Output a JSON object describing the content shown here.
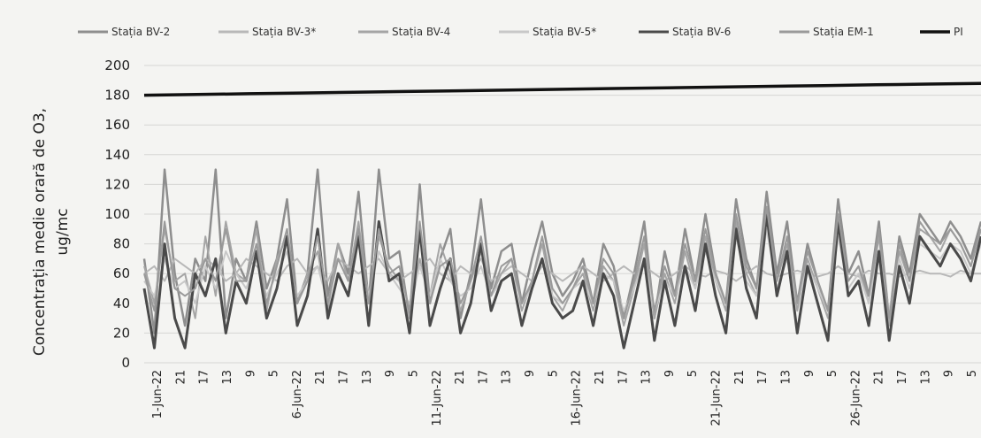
{
  "chart_data": {
    "type": "line",
    "ylabel_line1": "Concentrația medie orară de O3,",
    "ylabel_line2": "ug/mc",
    "ylim": [
      0,
      200
    ],
    "yticks": [
      0,
      20,
      40,
      60,
      80,
      100,
      120,
      140,
      160,
      180,
      200
    ],
    "grid": true,
    "legend_position": "top",
    "x_ticks": [
      "1-Jun-22",
      "21",
      "17",
      "13",
      "9",
      "5",
      "6-Jun-22",
      "21",
      "17",
      "13",
      "9",
      "5",
      "11-Jun-22",
      "21",
      "17",
      "13",
      "9",
      "5",
      "16-Jun-22",
      "21",
      "17",
      "13",
      "9",
      "5",
      "21-Jun-22",
      "21",
      "17",
      "13",
      "9",
      "5",
      "26-Jun-22",
      "21",
      "17",
      "13",
      "9",
      "5"
    ],
    "series": [
      {
        "name": "Stația BV-2",
        "color": "#8e8e8e",
        "width": 2.5,
        "values": [
          70,
          20,
          130,
          60,
          25,
          70,
          55,
          130,
          30,
          70,
          55,
          95,
          50,
          70,
          110,
          40,
          60,
          130,
          45,
          80,
          60,
          115,
          40,
          130,
          70,
          75,
          30,
          120,
          40,
          70,
          90,
          30,
          60,
          110,
          50,
          75,
          80,
          40,
          70,
          95,
          60,
          45,
          55,
          70,
          40,
          80,
          65,
          30,
          60,
          95,
          30,
          75,
          45,
          90,
          55,
          100,
          60,
          40,
          110,
          70,
          50,
          115,
          60,
          95,
          40,
          80,
          55,
          35,
          110,
          60,
          75,
          45,
          95,
          30,
          85,
          60,
          100,
          90,
          80,
          95,
          85,
          70,
          95
        ]
      },
      {
        "name": "Stația BV-3*",
        "color": "#b8b8b8",
        "width": 2,
        "values": [
          60,
          65,
          55,
          70,
          65,
          60,
          70,
          65,
          55,
          60,
          70,
          65,
          60,
          55,
          65,
          70,
          60,
          65,
          55,
          70,
          65,
          60,
          65,
          70,
          60,
          55,
          60,
          65,
          70,
          60,
          55,
          65,
          60,
          70,
          55,
          60,
          65,
          60,
          55,
          65,
          60,
          55,
          60,
          65,
          60,
          55,
          60,
          65,
          60,
          65,
          60,
          55,
          60,
          65,
          60,
          58,
          62,
          60,
          55,
          60,
          65,
          60,
          58,
          60,
          62,
          60,
          58,
          60,
          65,
          60,
          58,
          62,
          60,
          60,
          58,
          60,
          62,
          60,
          60,
          58,
          62,
          60,
          60
        ]
      },
      {
        "name": "Stația BV-4",
        "color": "#a5a5a5",
        "width": 2,
        "values": [
          65,
          40,
          90,
          55,
          60,
          30,
          85,
          45,
          95,
          60,
          55,
          90,
          35,
          70,
          85,
          40,
          60,
          75,
          35,
          80,
          55,
          95,
          40,
          85,
          65,
          55,
          30,
          70,
          45,
          80,
          60,
          35,
          55,
          75,
          45,
          60,
          70,
          35,
          55,
          80,
          45,
          35,
          50,
          60,
          35,
          65,
          55,
          25,
          50,
          80,
          30,
          60,
          40,
          75,
          50,
          85,
          55,
          35,
          95,
          60,
          45,
          100,
          55,
          80,
          35,
          70,
          50,
          30,
          95,
          55,
          65,
          40,
          85,
          25,
          75,
          55,
          90,
          85,
          75,
          90,
          80,
          65,
          90
        ]
      },
      {
        "name": "Stația BV-5*",
        "color": "#c8c8c8",
        "width": 2,
        "values": [
          55,
          45,
          70,
          50,
          55,
          40,
          65,
          50,
          75,
          60,
          50,
          70,
          45,
          60,
          75,
          45,
          55,
          65,
          40,
          70,
          55,
          80,
          45,
          75,
          60,
          50,
          40,
          65,
          45,
          70,
          55,
          45,
          50,
          65,
          45,
          55,
          60,
          40,
          50,
          70,
          45,
          40,
          50,
          55,
          40,
          60,
          55,
          35,
          50,
          70,
          35,
          55,
          45,
          65,
          50,
          75,
          55,
          40,
          85,
          55,
          45,
          90,
          50,
          70,
          40,
          65,
          50,
          35,
          85,
          50,
          60,
          40,
          75,
          35,
          70,
          50,
          80,
          75,
          70,
          80,
          75,
          60,
          80
        ]
      },
      {
        "name": "Stația BV-6",
        "color": "#4a4a4a",
        "width": 3,
        "values": [
          50,
          10,
          80,
          30,
          10,
          60,
          45,
          70,
          20,
          55,
          40,
          75,
          30,
          50,
          85,
          25,
          45,
          90,
          30,
          60,
          45,
          85,
          25,
          95,
          55,
          60,
          20,
          90,
          25,
          50,
          70,
          20,
          40,
          80,
          35,
          55,
          60,
          25,
          50,
          70,
          40,
          30,
          35,
          55,
          25,
          60,
          45,
          10,
          40,
          70,
          15,
          55,
          25,
          65,
          35,
          80,
          45,
          20,
          90,
          50,
          30,
          100,
          45,
          75,
          20,
          65,
          40,
          15,
          95,
          45,
          55,
          25,
          75,
          15,
          65,
          40,
          85,
          75,
          65,
          80,
          70,
          55,
          85
        ]
      },
      {
        "name": "Stația EM-1",
        "color": "#9a9a9a",
        "width": 2,
        "values": [
          60,
          35,
          95,
          50,
          45,
          50,
          70,
          55,
          90,
          55,
          55,
          80,
          40,
          65,
          90,
          40,
          55,
          85,
          40,
          70,
          55,
          90,
          40,
          90,
          60,
          65,
          35,
          95,
          40,
          65,
          70,
          40,
          55,
          85,
          45,
          65,
          70,
          40,
          55,
          85,
          50,
          40,
          50,
          65,
          40,
          70,
          60,
          30,
          55,
          85,
          35,
          65,
          45,
          80,
          55,
          90,
          60,
          40,
          100,
          65,
          50,
          105,
          55,
          85,
          40,
          75,
          55,
          35,
          100,
          55,
          65,
          45,
          90,
          30,
          80,
          55,
          95,
          85,
          80,
          90,
          80,
          65,
          90
        ]
      },
      {
        "name": "PI",
        "color": "#111111",
        "width": 3.5,
        "values": [
          180,
          180.5,
          181,
          181.5,
          182,
          182.5,
          183,
          183.5,
          184,
          184.5,
          185,
          185.5,
          186,
          186.5,
          187,
          187.5,
          188
        ]
      }
    ]
  }
}
